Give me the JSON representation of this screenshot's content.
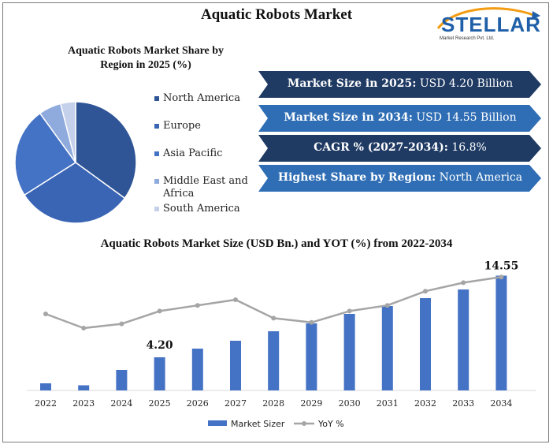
{
  "header": {
    "title": "Aquatic Robots Market"
  },
  "logo": {
    "name": "STELLAR",
    "tagline": "Market Research Pvt. Ltd."
  },
  "pie": {
    "title_line1": "Aquatic Robots Market  Share by",
    "title_line2": "Region in 2025 (%)"
  },
  "banners": [
    {
      "label": "Market Size in 2025:",
      "value": " USD 4.20 Billion",
      "color": "#1f3a63"
    },
    {
      "label": "Market Size in 2034:",
      "value": " USD 14.55 Billion",
      "color": "#2f6eb5"
    },
    {
      "label": "CAGR % (2027-2034):",
      "value": " 16.8%",
      "color": "#1f3a63"
    },
    {
      "label": "Highest Share by Region:",
      "value": " North America",
      "color": "#2f6eb5"
    }
  ],
  "chart_data": [
    {
      "type": "pie",
      "title": "Aquatic Robots Market  Share by Region in 2025 (%)",
      "legend_position": "right",
      "slices": [
        {
          "name": "North America",
          "value": 35,
          "color": "#2f5597"
        },
        {
          "name": "Europe",
          "value": 31,
          "color": "#3a65b5"
        },
        {
          "name": "Asia Pacific",
          "value": 24,
          "color": "#4472c4"
        },
        {
          "name": "Middle East and Africa",
          "value": 6,
          "color": "#8faadc"
        },
        {
          "name": "South America",
          "value": 4,
          "color": "#c5d0ea"
        }
      ]
    },
    {
      "type": "bar",
      "title": "Aquatic Robots Market Size (USD Bn.) and YOT (%) from 2022-2034",
      "categories": [
        "2022",
        "2023",
        "2024",
        "2025",
        "2026",
        "2027",
        "2028",
        "2029",
        "2030",
        "2031",
        "2032",
        "2033",
        "2034"
      ],
      "series": [
        {
          "name": "Market Sizer",
          "type": "bar",
          "color": "#4472c4",
          "values": [
            0.9,
            0.65,
            2.6,
            4.2,
            5.3,
            6.3,
            7.5,
            8.5,
            9.7,
            10.7,
            11.7,
            12.8,
            14.55
          ]
        },
        {
          "name": "YoY %",
          "type": "line",
          "color": "#a5a5a5",
          "values": [
            40,
            30,
            33,
            42,
            46,
            50,
            37,
            34,
            42,
            46,
            56,
            62,
            66
          ]
        }
      ],
      "data_labels": [
        {
          "index": 3,
          "text": "4.20"
        },
        {
          "index": 12,
          "text": "14.55"
        }
      ],
      "legend_position": "bottom",
      "ylim": [
        0,
        15
      ],
      "grid": false
    }
  ]
}
